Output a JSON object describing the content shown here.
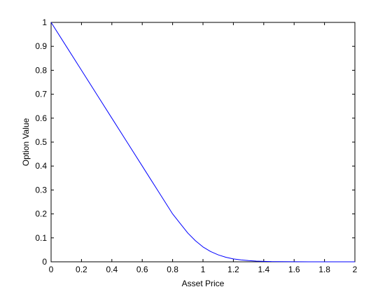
{
  "chart_data": {
    "type": "line",
    "title": "",
    "xlabel": "Asset Price",
    "ylabel": "Option Value",
    "xlim": [
      0,
      2
    ],
    "ylim": [
      0,
      1
    ],
    "xticks": [
      0,
      0.2,
      0.4,
      0.6,
      0.8,
      1,
      1.2,
      1.4,
      1.6,
      1.8,
      2
    ],
    "yticks": [
      0,
      0.1,
      0.2,
      0.3,
      0.4,
      0.5,
      0.6,
      0.7,
      0.8,
      0.9,
      1
    ],
    "grid": false,
    "series": [
      {
        "color": "#0000ff",
        "x": [
          0,
          0.1,
          0.2,
          0.3,
          0.4,
          0.5,
          0.6,
          0.65,
          0.7,
          0.75,
          0.8,
          0.85,
          0.9,
          0.95,
          1.0,
          1.05,
          1.1,
          1.15,
          1.2,
          1.25,
          1.3,
          1.35,
          1.4,
          1.45,
          1.5,
          1.6,
          1.7,
          1.8,
          1.9,
          2.0
        ],
        "y": [
          1.0,
          0.9,
          0.8,
          0.7,
          0.6,
          0.5,
          0.4,
          0.35,
          0.3,
          0.25,
          0.2,
          0.16,
          0.12,
          0.088,
          0.062,
          0.043,
          0.029,
          0.019,
          0.012,
          0.008,
          0.005,
          0.003,
          0.002,
          0.001,
          0.0007,
          0.0003,
          0.0001,
          0.0,
          0.0,
          0.0
        ]
      }
    ]
  }
}
